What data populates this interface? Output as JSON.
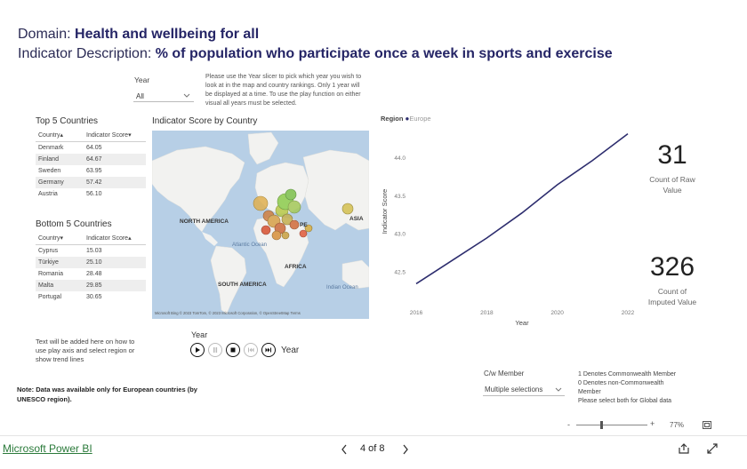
{
  "header": {
    "domain_label": "Domain: ",
    "domain_value": "Health and wellbeing for all",
    "indicator_label": "Indicator Description: ",
    "indicator_value": "% of population who participate once a week in sports and exercise"
  },
  "year_slicer": {
    "label": "Year",
    "selected": "All",
    "instructions": [
      "Please use the Year slicer to pick which year you wish to",
      "look at in the map and country rankings. Only 1 year will",
      "be displayed at a time. To use the play function on either",
      "visual all years must be selected."
    ]
  },
  "top5": {
    "title": "Top 5 Countries",
    "col_country": "Country",
    "col_score": "Indicator Score",
    "rows": [
      {
        "country": "Denmark",
        "score": "64.05"
      },
      {
        "country": "Finland",
        "score": "64.67"
      },
      {
        "country": "Sweden",
        "score": "63.95"
      },
      {
        "country": "Germany",
        "score": "57.42"
      },
      {
        "country": "Austria",
        "score": "56.10"
      }
    ]
  },
  "bottom5": {
    "title": "Bottom 5 Countries",
    "col_country": "Country",
    "col_score": "Indicator Score",
    "rows": [
      {
        "country": "Cyprus",
        "score": "15.03"
      },
      {
        "country": "Türkiye",
        "score": "25.10"
      },
      {
        "country": "Romania",
        "score": "28.48"
      },
      {
        "country": "Malta",
        "score": "29.85"
      },
      {
        "country": "Portugal",
        "score": "30.65"
      }
    ]
  },
  "map": {
    "title": "Indicator Score by Country",
    "labels": {
      "north_america": "NORTH AMERICA",
      "europe": "PE",
      "asia": "ASIA",
      "atlantic": "Atlantic Ocean",
      "africa": "AFRICA",
      "south_america": "SOUTH AMERICA",
      "indian": "Indian Ocean"
    },
    "attribution": "Microsoft Bing  © 2023 TomTom, © 2023 Microsoft Corporation, © OpenStreetMap  Terms"
  },
  "play_axis": {
    "title": "Year",
    "label": "Year"
  },
  "help_text": [
    "Text will be added here on how to",
    "use play axis and select region or",
    "show trend lines"
  ],
  "note": [
    "Note: Data was available only for European countries (by",
    "UNESCO region)."
  ],
  "line_chart": {
    "legend_title": "Region",
    "legend_item": "Europe",
    "series_color": "#2d2d6e",
    "ylabel": "Indicator Score",
    "xlabel": "Year",
    "y_ticks": [
      "44.0",
      "43.5",
      "43.0",
      "42.5"
    ],
    "x_ticks": [
      "2016",
      "2018",
      "2020",
      "2022"
    ]
  },
  "chart_data": {
    "type": "line",
    "x": [
      2016,
      2017,
      2018,
      2019,
      2020,
      2021,
      2022
    ],
    "series": [
      {
        "name": "Europe",
        "values": [
          42.35,
          42.65,
          42.95,
          43.28,
          43.65,
          43.97,
          44.32
        ]
      }
    ],
    "xlabel": "Year",
    "ylabel": "Indicator Score",
    "xlim": [
      2016,
      2022
    ],
    "ylim": [
      42.25,
      44.35
    ],
    "grid": false,
    "legend": "top-left"
  },
  "kpi_raw": {
    "value": "31",
    "label": [
      "Count of Raw",
      "Value"
    ]
  },
  "kpi_imputed": {
    "value": "326",
    "label": [
      "Count of",
      "Imputed Value"
    ]
  },
  "cw_slicer": {
    "label": "C/w Member",
    "selected": "Multiple selections",
    "legend": [
      "1 Denotes Commonwealth Member",
      "0 Denotes non-Commonwealth",
      "Member",
      "Please select both for Global data"
    ]
  },
  "footer": {
    "brand": "Microsoft Power BI",
    "page_indicator": "4 of 8",
    "zoom": "77%"
  }
}
